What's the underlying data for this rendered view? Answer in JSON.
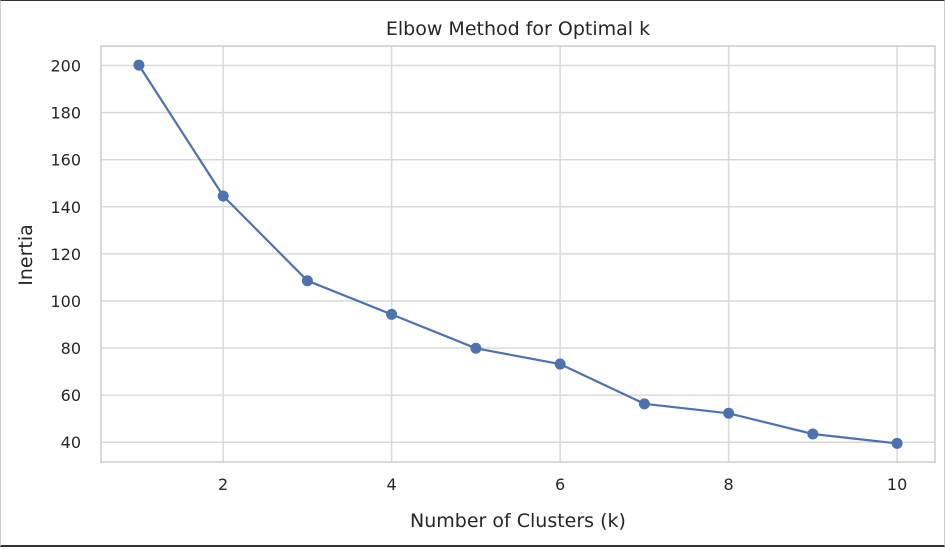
{
  "chart_data": {
    "type": "line",
    "title": "Elbow Method for Optimal k",
    "xlabel": "Number of Clusters (k)",
    "ylabel": "Inertia",
    "x": [
      1,
      2,
      3,
      4,
      5,
      6,
      7,
      8,
      9,
      10
    ],
    "series": [
      {
        "values": [
          200.2,
          144.6,
          108.6,
          94.3,
          79.9,
          73.2,
          56.3,
          52.3,
          43.5,
          39.5
        ],
        "color": "#4c72b0",
        "marker": "circle"
      }
    ],
    "xticks": [
      2,
      4,
      6,
      8,
      10
    ],
    "yticks": [
      40,
      60,
      80,
      100,
      120,
      140,
      160,
      180,
      200
    ],
    "xlim": [
      0.55,
      10.45
    ],
    "ylim": [
      31.6,
      208.3
    ],
    "grid": true
  }
}
